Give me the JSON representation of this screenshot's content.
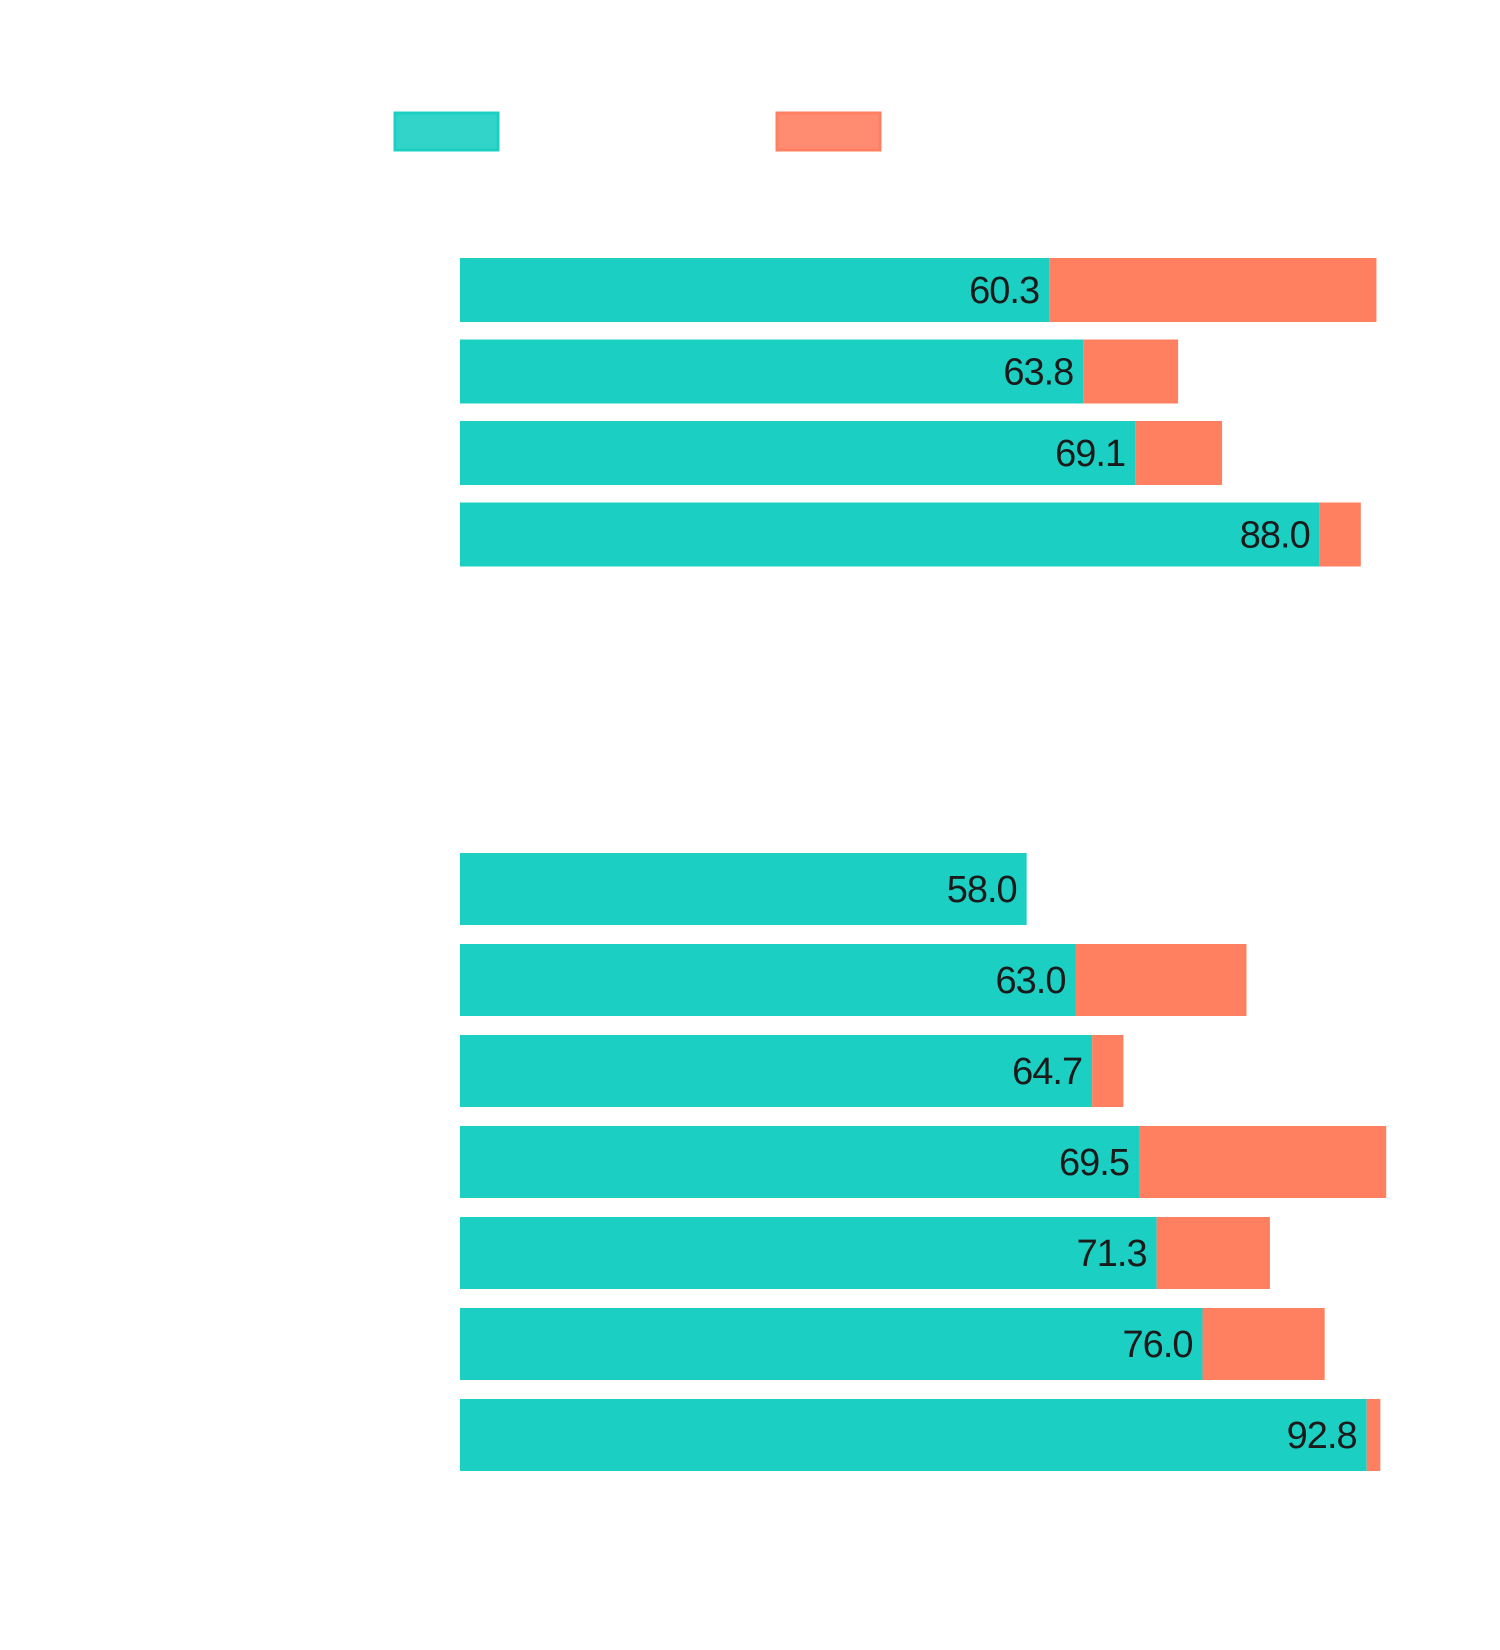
{
  "chart_data": {
    "type": "bar",
    "orientation": "horizontal",
    "stacked": true,
    "title": "",
    "xlabel": "",
    "ylabel": "",
    "xlim": [
      0,
      100
    ],
    "grid": false,
    "legend": {
      "placement": "top",
      "entries": [
        {
          "name": "",
          "color": "#1ccfc3"
        },
        {
          "name": "",
          "color": "#ff8060"
        }
      ]
    },
    "groups": [
      {
        "name": "",
        "bars": [
          {
            "base": 60.3,
            "extra": 33.5,
            "label": "60.3"
          },
          {
            "base": 63.8,
            "extra": 9.7,
            "label": "63.8"
          },
          {
            "base": 69.1,
            "extra": 8.9,
            "label": "69.1"
          },
          {
            "base": 88.0,
            "extra": 4.2,
            "label": "88.0"
          }
        ]
      },
      {
        "name": "",
        "bars": [
          {
            "base": 58.0,
            "extra": 0.0,
            "label": "58.0"
          },
          {
            "base": 63.0,
            "extra": 17.5,
            "label": "63.0"
          },
          {
            "base": 64.7,
            "extra": 3.2,
            "label": "64.7"
          },
          {
            "base": 69.5,
            "extra": 25.3,
            "label": "69.5"
          },
          {
            "base": 71.3,
            "extra": 11.6,
            "label": "71.3"
          },
          {
            "base": 76.0,
            "extra": 12.5,
            "label": "76.0"
          },
          {
            "base": 92.8,
            "extra": 1.4,
            "label": "92.8"
          }
        ]
      }
    ]
  }
}
